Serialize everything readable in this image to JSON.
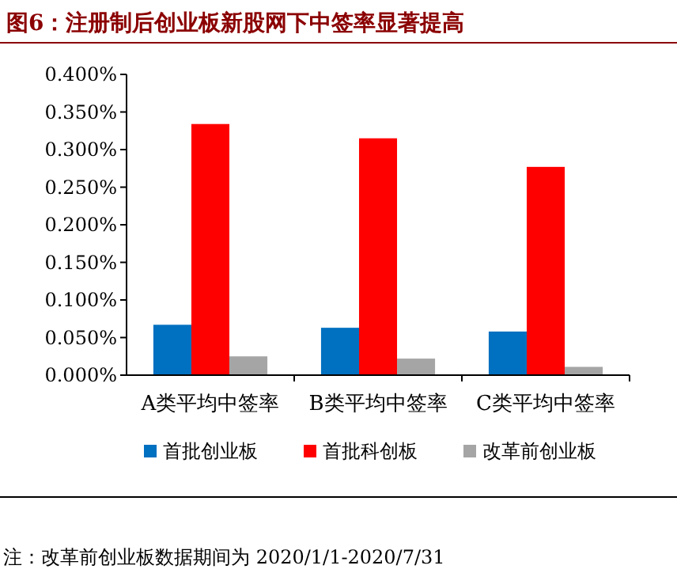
{
  "chart_data": {
    "type": "bar",
    "title": "图6：注册制后创业板新股网下中签率显著提高",
    "categories": [
      "A类平均中签率",
      "B类平均中签率",
      "C类平均中签率"
    ],
    "series": [
      {
        "name": "首批创业板",
        "color": "#0070c0",
        "values": [
          0.067,
          0.063,
          0.058
        ]
      },
      {
        "name": "首批科创板",
        "color": "#ff0000",
        "values": [
          0.334,
          0.315,
          0.277
        ]
      },
      {
        "name": "改革前创业板",
        "color": "#a5a5a5",
        "values": [
          0.025,
          0.022,
          0.011
        ]
      }
    ],
    "ylim": [
      0,
      0.4
    ],
    "yticks": [
      {
        "value": 0,
        "label": "0.000%"
      },
      {
        "value": 0.05,
        "label": "0.050%"
      },
      {
        "value": 0.1,
        "label": "0.100%"
      },
      {
        "value": 0.15,
        "label": "0.150%"
      },
      {
        "value": 0.2,
        "label": "0.200%"
      },
      {
        "value": 0.25,
        "label": "0.250%"
      },
      {
        "value": 0.3,
        "label": "0.300%"
      },
      {
        "value": 0.35,
        "label": "0.350%"
      },
      {
        "value": 0.4,
        "label": "0.400%"
      }
    ],
    "grid": false,
    "legend": "bottom",
    "annotations": [
      "注：改革前创业板数据期间为 2020/1/1-2020/7/31"
    ]
  }
}
